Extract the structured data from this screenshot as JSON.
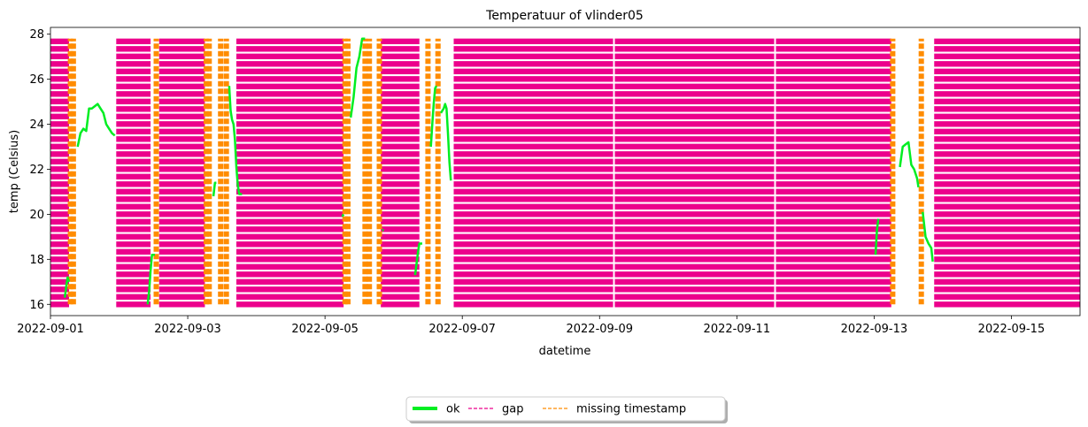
{
  "chart_data": {
    "type": "line",
    "title": "Temperatuur of vlinder05",
    "xlabel": "datetime",
    "ylabel": "temp (Celsius)",
    "xlim": [
      "2022-09-01",
      "2022-09-16"
    ],
    "ylim": [
      15.5,
      28.3
    ],
    "x_ticks": [
      "2022-09-01",
      "2022-09-03",
      "2022-09-05",
      "2022-09-07",
      "2022-09-09",
      "2022-09-11",
      "2022-09-13",
      "2022-09-15"
    ],
    "y_ticks": [
      16,
      18,
      20,
      22,
      24,
      26,
      28
    ],
    "grid": false,
    "legend": {
      "placement": "bottom-center, below axes",
      "entries": [
        {
          "label": "ok",
          "color": "#00ee22",
          "style": "solid"
        },
        {
          "label": "gap",
          "color": "#ec008c",
          "style": "dashed"
        },
        {
          "label": "missing timestamp",
          "color": "#ff8c00",
          "style": "dashed"
        }
      ]
    },
    "colors": {
      "ok": "#00ee22",
      "gap": "#ec008c",
      "missing_timestamp": "#ff8c00"
    },
    "band_range": [
      16.0,
      27.8
    ],
    "gap_periods": [
      [
        "2022-09-01 00:00",
        "2022-09-01 06:30"
      ],
      [
        "2022-09-01 23:00",
        "2022-09-02 11:00"
      ],
      [
        "2022-09-02 14:00",
        "2022-09-03 06:00"
      ],
      [
        "2022-09-03 17:00",
        "2022-09-05 06:30"
      ],
      [
        "2022-09-05 19:30",
        "2022-09-06 09:00"
      ],
      [
        "2022-09-06 21:00",
        "2022-09-13 06:00"
      ],
      [
        "2022-09-13 21:00",
        "2022-09-16 00:00"
      ]
    ],
    "missing_timestamp_times": [
      "2022-09-01 07:00",
      "2022-09-01 08:00",
      "2022-09-02 13:00",
      "2022-09-03 06:30",
      "2022-09-03 07:30",
      "2022-09-03 11:30",
      "2022-09-03 13:30",
      "2022-09-05 07:00",
      "2022-09-05 08:00",
      "2022-09-05 14:00",
      "2022-09-05 15:30",
      "2022-09-05 19:00",
      "2022-09-06 12:00",
      "2022-09-06 15:30",
      "2022-09-13 06:30",
      "2022-09-13 16:30"
    ],
    "ok_segments": [
      {
        "x": [
          "2022-09-01 05:00",
          "2022-09-01 05:30",
          "2022-09-01 06:00",
          "2022-09-01 06:30"
        ],
        "y": [
          16.3,
          16.8,
          17.2,
          17.0
        ]
      },
      {
        "x": [
          "2022-09-01 09:30",
          "2022-09-01 10:30",
          "2022-09-01 11:30",
          "2022-09-01 12:30",
          "2022-09-01 13:30",
          "2022-09-01 14:30",
          "2022-09-01 15:30",
          "2022-09-01 16:30",
          "2022-09-01 17:30",
          "2022-09-01 18:30",
          "2022-09-01 19:30",
          "2022-09-01 20:30",
          "2022-09-01 21:30",
          "2022-09-01 22:30"
        ],
        "y": [
          23.0,
          23.6,
          23.8,
          23.7,
          24.7,
          24.7,
          24.8,
          24.9,
          24.7,
          24.5,
          24.0,
          23.8,
          23.6,
          23.5
        ]
      },
      {
        "x": [
          "2022-09-02 10:00",
          "2022-09-02 10:30",
          "2022-09-02 11:00",
          "2022-09-02 11:30",
          "2022-09-02 12:00",
          "2022-09-02 12:30"
        ],
        "y": [
          16.0,
          16.6,
          17.5,
          18.2,
          18.2,
          18.2
        ]
      },
      {
        "x": [
          "2022-09-03 09:00",
          "2022-09-03 09:30",
          "2022-09-03 10:00"
        ],
        "y": [
          20.8,
          21.4,
          21.4
        ]
      },
      {
        "x": [
          "2022-09-03 14:30",
          "2022-09-03 15:00",
          "2022-09-03 15:30",
          "2022-09-03 16:00",
          "2022-09-03 16:30",
          "2022-09-03 17:00",
          "2022-09-03 17:30",
          "2022-09-03 18:00",
          "2022-09-03 18:30",
          "2022-09-03 19:00"
        ],
        "y": [
          25.7,
          24.6,
          24.2,
          24.0,
          23.3,
          22.1,
          21.3,
          20.9,
          20.9,
          20.9
        ]
      },
      {
        "x": [
          "2022-09-05 06:00",
          "2022-09-05 06:30"
        ],
        "y": [
          19.9,
          20.0
        ]
      },
      {
        "x": [
          "2022-09-05 09:00",
          "2022-09-05 10:00",
          "2022-09-05 11:00",
          "2022-09-05 12:00",
          "2022-09-05 13:00",
          "2022-09-05 14:00"
        ],
        "y": [
          24.3,
          25.2,
          26.5,
          27.0,
          27.8,
          27.8
        ]
      },
      {
        "x": [
          "2022-09-05 20:00",
          "2022-09-05 20:30"
        ],
        "y": [
          19.3,
          19.3
        ]
      },
      {
        "x": [
          "2022-09-06 07:30",
          "2022-09-06 08:30",
          "2022-09-06 09:00",
          "2022-09-06 10:00"
        ],
        "y": [
          17.3,
          18.3,
          18.7,
          18.7
        ]
      },
      {
        "x": [
          "2022-09-06 13:00",
          "2022-09-06 13:30",
          "2022-09-06 14:00",
          "2022-09-06 14:30",
          "2022-09-06 15:00"
        ],
        "y": [
          23.0,
          24.0,
          24.9,
          25.6,
          25.7
        ]
      },
      {
        "x": [
          "2022-09-06 16:30",
          "2022-09-06 17:30",
          "2022-09-06 18:00",
          "2022-09-06 18:30",
          "2022-09-06 19:00",
          "2022-09-06 19:30",
          "2022-09-06 20:00"
        ],
        "y": [
          24.5,
          24.7,
          24.9,
          24.7,
          23.6,
          22.3,
          21.5
        ]
      },
      {
        "x": [
          "2022-09-13 00:30",
          "2022-09-13 01:00",
          "2022-09-13 01:30"
        ],
        "y": [
          18.2,
          19.3,
          19.8
        ]
      },
      {
        "x": [
          "2022-09-13 09:00",
          "2022-09-13 10:00",
          "2022-09-13 11:00",
          "2022-09-13 12:00",
          "2022-09-13 13:00",
          "2022-09-13 14:00",
          "2022-09-13 15:00",
          "2022-09-13 15:30"
        ],
        "y": [
          22.1,
          23.0,
          23.1,
          23.2,
          22.2,
          22.0,
          21.6,
          21.2
        ]
      },
      {
        "x": [
          "2022-09-13 17:00",
          "2022-09-13 18:00",
          "2022-09-13 19:00",
          "2022-09-13 20:00",
          "2022-09-13 20:30"
        ],
        "y": [
          20.1,
          19.0,
          18.7,
          18.5,
          17.9
        ]
      }
    ]
  }
}
